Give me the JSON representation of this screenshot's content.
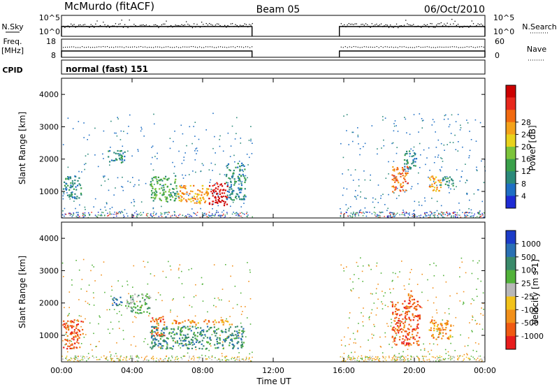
{
  "header": {
    "station": "McMurdo (fitACF)",
    "beam": "Beam 05",
    "date": "06/Oct/2010"
  },
  "noise_panel": {
    "left_label": "N.Sky",
    "left_ticks": [
      "10^5",
      "10^0"
    ],
    "right_label": "N.Search",
    "right_ticks": [
      "10^5",
      "10^0"
    ]
  },
  "freq_panel": {
    "left_label_line1": "Freq.",
    "left_label_line2": "[MHz]",
    "left_ticks": [
      "18",
      "8"
    ],
    "right_label": "Nave",
    "right_ticks": [
      "60",
      "0"
    ]
  },
  "cpid_panel": {
    "label": "CPID",
    "value": "normal (fast) 151"
  },
  "chart_data": [
    {
      "type": "heatmap",
      "name": "power",
      "ylabel": "Slant Range [km]",
      "xlabel": "",
      "xlim_hours": [
        0,
        24
      ],
      "ylim": [
        180,
        4500
      ],
      "yticks": [
        "1000",
        "2000",
        "3000",
        "4000"
      ],
      "colorbar_label": "Power [dB]",
      "colorbar_ticks": [
        "4",
        "8",
        "12",
        "16",
        "20",
        "24",
        "28"
      ],
      "colorbar_colors": [
        "#1e2bd4",
        "#1f6fc4",
        "#2b8a7a",
        "#3aa04a",
        "#7cc43a",
        "#e8d21c",
        "#f4a21a",
        "#f26a10",
        "#e8281c",
        "#cc0000"
      ],
      "observation_windows_hours": [
        [
          0,
          10.8
        ],
        [
          15.75,
          24
        ]
      ],
      "regions": [
        {
          "t0": 0.05,
          "t1": 1.1,
          "r0": 800,
          "r1": 1500,
          "level": 2
        },
        {
          "t0": 2.6,
          "t1": 3.6,
          "r0": 1900,
          "r1": 2300,
          "level": 2
        },
        {
          "t0": 5.0,
          "t1": 6.6,
          "r0": 700,
          "r1": 1500,
          "level": 3
        },
        {
          "t0": 6.5,
          "t1": 8.3,
          "r0": 650,
          "r1": 1200,
          "level": 6
        },
        {
          "t0": 8.3,
          "t1": 9.4,
          "r0": 580,
          "r1": 1300,
          "level": 9
        },
        {
          "t0": 9.3,
          "t1": 10.4,
          "r0": 750,
          "r1": 1900,
          "level": 2
        },
        {
          "t0": 18.7,
          "t1": 19.6,
          "r0": 1000,
          "r1": 1800,
          "level": 7
        },
        {
          "t0": 19.4,
          "t1": 20.1,
          "r0": 1700,
          "r1": 2300,
          "level": 2
        },
        {
          "t0": 20.8,
          "t1": 21.5,
          "r0": 1000,
          "r1": 1500,
          "level": 6
        },
        {
          "t0": 21.4,
          "t1": 22.2,
          "r0": 1200,
          "r1": 1500,
          "level": 2
        }
      ]
    },
    {
      "type": "heatmap",
      "name": "velocity",
      "ylabel": "Slant Range [km]",
      "xlabel": "Time UT",
      "xlim_hours": [
        0,
        24
      ],
      "ylim": [
        180,
        4500
      ],
      "yticks": [
        "1000",
        "2000",
        "3000",
        "4000"
      ],
      "xticks": [
        "00:00",
        "04:00",
        "08:00",
        "12:00",
        "16:00",
        "20:00",
        "00:00"
      ],
      "colorbar_label": "Velocity [m s-1]",
      "colorbar_ticks": [
        "1000",
        "500",
        "100",
        "25",
        "-25",
        "-100",
        "-500",
        "-1000"
      ],
      "colorbar_colors": [
        "#1c3cc8",
        "#2a70b4",
        "#3a8a6a",
        "#52b23a",
        "#b8b8b8",
        "#f2c21a",
        "#f2901a",
        "#f05a12",
        "#e81c1c"
      ],
      "observation_windows_hours": [
        [
          0,
          10.8
        ],
        [
          15.75,
          24
        ]
      ],
      "regions": [
        {
          "t0": 0.05,
          "t1": 1.2,
          "r0": 600,
          "r1": 1500,
          "level": 7
        },
        {
          "t0": 2.8,
          "t1": 3.4,
          "r0": 1900,
          "r1": 2200,
          "level": 1
        },
        {
          "t0": 3.6,
          "t1": 5.0,
          "r0": 1700,
          "r1": 2300,
          "level": 3
        },
        {
          "t0": 5.0,
          "t1": 5.8,
          "r0": 1000,
          "r1": 1600,
          "level": 7
        },
        {
          "t0": 5.0,
          "t1": 10.3,
          "r0": 600,
          "r1": 1300,
          "level": 2
        },
        {
          "t0": 6.2,
          "t1": 9.8,
          "r0": 1350,
          "r1": 1500,
          "level": 6
        },
        {
          "t0": 18.7,
          "t1": 20.3,
          "r0": 700,
          "r1": 2100,
          "level": 7
        },
        {
          "t0": 19.6,
          "t1": 20.0,
          "r0": 2000,
          "r1": 2400,
          "level": 7
        },
        {
          "t0": 20.8,
          "t1": 22.1,
          "r0": 900,
          "r1": 1500,
          "level": 6
        }
      ]
    }
  ]
}
